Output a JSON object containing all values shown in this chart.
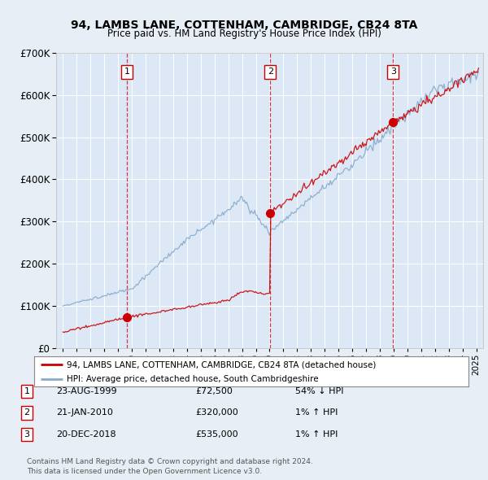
{
  "title1": "94, LAMBS LANE, COTTENHAM, CAMBRIDGE, CB24 8TA",
  "title2": "Price paid vs. HM Land Registry's House Price Index (HPI)",
  "bg_color": "#e8eef5",
  "plot_bg_color": "#dce8f5",
  "line1_color": "#cc0000",
  "line2_color": "#88aacc",
  "dashed_line_color": "#cc0000",
  "transactions": [
    {
      "num": 1,
      "date": "23-AUG-1999",
      "year": 1999.64,
      "price": 72500,
      "hpi_rel": "54% ↓ HPI"
    },
    {
      "num": 2,
      "date": "21-JAN-2010",
      "year": 2010.05,
      "price": 320000,
      "hpi_rel": "1% ↑ HPI"
    },
    {
      "num": 3,
      "date": "20-DEC-2018",
      "year": 2018.96,
      "price": 535000,
      "hpi_rel": "1% ↑ HPI"
    }
  ],
  "legend1": "94, LAMBS LANE, COTTENHAM, CAMBRIDGE, CB24 8TA (detached house)",
  "legend2": "HPI: Average price, detached house, South Cambridgeshire",
  "footnote1": "Contains HM Land Registry data © Crown copyright and database right 2024.",
  "footnote2": "This data is licensed under the Open Government Licence v3.0.",
  "xlim": [
    1994.5,
    2025.5
  ],
  "ylim": [
    0,
    700000
  ],
  "trans_years": [
    1999.64,
    2010.05,
    2018.96
  ],
  "trans_prices": [
    72500,
    320000,
    535000
  ]
}
